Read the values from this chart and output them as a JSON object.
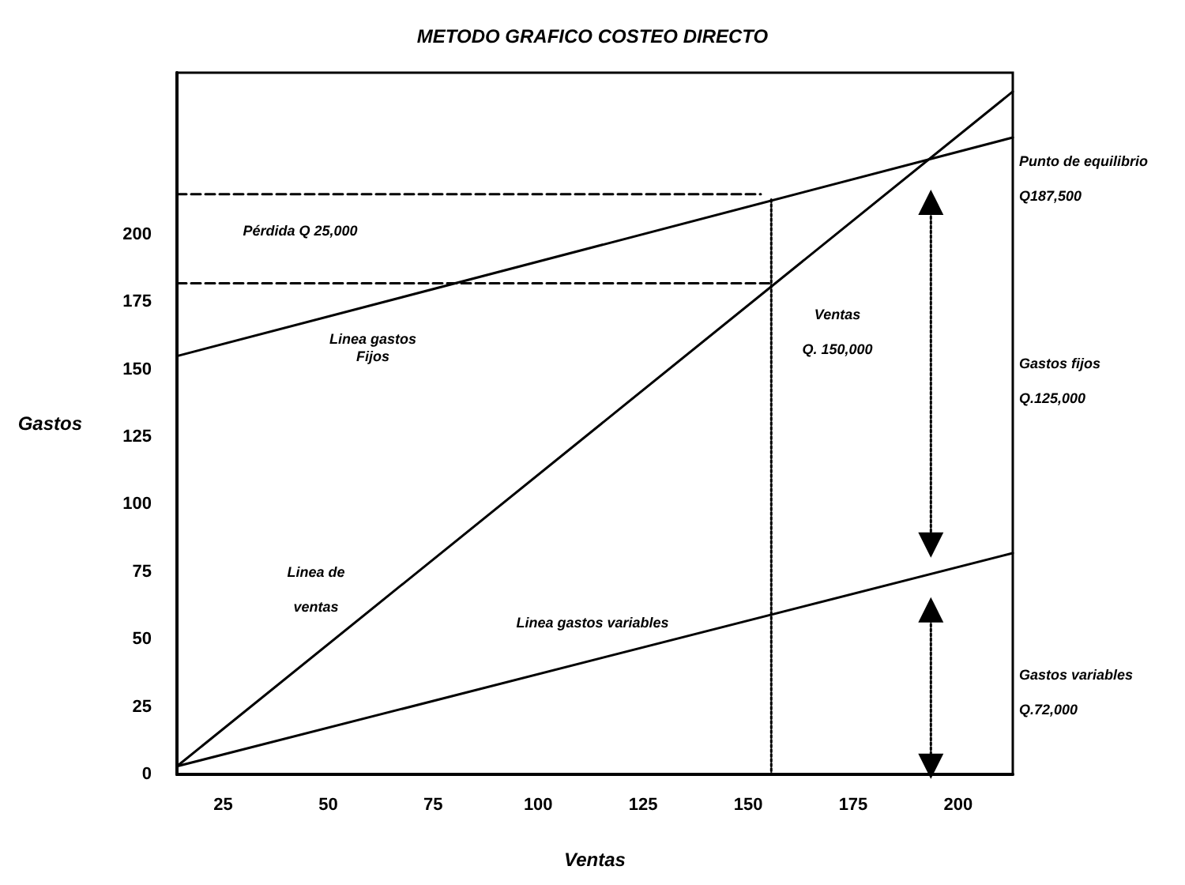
{
  "chart_data": {
    "type": "line",
    "title": "METODO GRAFICO COSTEO DIRECTO",
    "xlabel": "Ventas",
    "ylabel": "Gastos",
    "xlim": [
      14,
      213
    ],
    "xticks": [
      25,
      50,
      75,
      100,
      125,
      150,
      175,
      200
    ],
    "ylim": [
      0,
      260
    ],
    "yticks": [
      0,
      25,
      50,
      75,
      100,
      125,
      150,
      175,
      200
    ],
    "marker": "none",
    "line_style": "solid",
    "series": [
      {
        "color": "#000000",
        "x": [
          14,
          213
        ],
        "values": [
          155,
          236
        ]
      },
      {
        "color": "#000000",
        "x": [
          14,
          213
        ],
        "values": [
          3,
          253
        ]
      },
      {
        "color": "#000000",
        "x": [
          14,
          213
        ],
        "values": [
          3,
          82
        ]
      },
      {
        "color": "#000000",
        "x": [
          14,
          153
        ],
        "values": [
          215,
          215
        ],
        "line_style": "dashed"
      },
      {
        "color": "#000000",
        "x": [
          14,
          155
        ],
        "values": [
          182,
          182
        ],
        "line_style": "dashed"
      },
      {
        "color": "#000000",
        "x": [
          155.5,
          155.5
        ],
        "values": [
          213,
          0
        ],
        "line_style": "dotted"
      },
      {
        "color": "#000000",
        "x": [
          193.5,
          193.5
        ],
        "values": [
          212,
          85
        ],
        "line_style": "dotted",
        "marker": "triangle"
      },
      {
        "color": "#000000",
        "x": [
          193.5,
          193.5
        ],
        "values": [
          61,
          3
        ],
        "line_style": "dotted",
        "marker": "triangle"
      }
    ],
    "annotations": [
      "Pérdida Q 25,000",
      "Linea gastos\nFijos",
      "Ventas\n\nQ. 150,000",
      "Linea de\n\nventas",
      "Linea gastos variables",
      "Punto de equilibrio\n\nQ187,500",
      "Gastos fijos\n\nQ.125,000",
      "Gastos variables\n\nQ.72,000"
    ]
  }
}
